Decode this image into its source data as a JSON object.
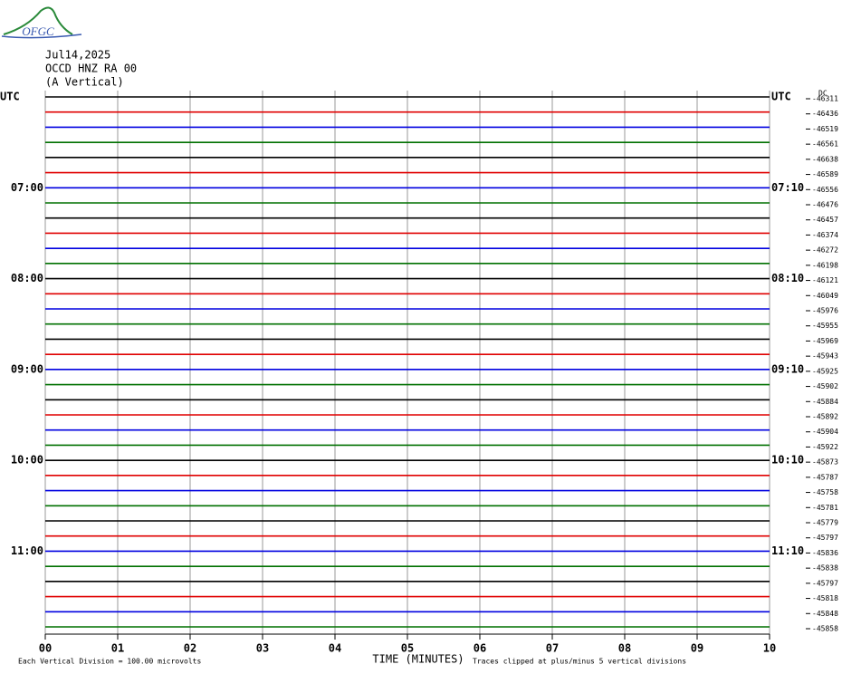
{
  "chart_data": {
    "type": "helicorder",
    "logo": "OFGC",
    "header": [
      "Jul14,2025",
      "OCCD HNZ RA 00",
      "(A Vertical)"
    ],
    "dc_label": "DC",
    "colors": [
      "#000000",
      "#e00000",
      "#0000e0",
      "#007000"
    ],
    "left_labels": [
      "UTC",
      null,
      null,
      null,
      null,
      null,
      "07:00",
      null,
      null,
      null,
      null,
      null,
      "08:00",
      null,
      null,
      null,
      null,
      null,
      "09:00",
      null,
      null,
      null,
      null,
      null,
      "10:00",
      null,
      null,
      null,
      null,
      null,
      "11:00",
      null,
      null,
      null,
      null,
      null
    ],
    "right_labels": [
      "UTC",
      null,
      null,
      null,
      null,
      null,
      "07:10",
      null,
      null,
      null,
      null,
      null,
      "08:10",
      null,
      null,
      null,
      null,
      null,
      "09:10",
      null,
      null,
      null,
      null,
      null,
      "10:10",
      null,
      null,
      null,
      null,
      null,
      "11:10",
      null,
      null,
      null,
      null,
      null
    ],
    "dc_values": [
      -46311,
      -46436,
      -46519,
      -46561,
      -46638,
      -46589,
      -46556,
      -46476,
      -46457,
      -46374,
      -46272,
      -46198,
      -46121,
      -46049,
      -45976,
      -45955,
      -45969,
      -45943,
      -45925,
      -45902,
      -45884,
      -45892,
      -45904,
      -45922,
      -45873,
      -45787,
      -45758,
      -45781,
      -45779,
      -45797,
      -45836,
      -45838,
      -45797,
      -45818,
      -45848,
      -45858
    ],
    "xlim": [
      0,
      10
    ],
    "xticks": [
      {
        "value": 0,
        "label": "00"
      },
      {
        "value": 1,
        "label": "01"
      },
      {
        "value": 2,
        "label": "02"
      },
      {
        "value": 3,
        "label": "03"
      },
      {
        "value": 4,
        "label": "04"
      },
      {
        "value": 5,
        "label": "05"
      },
      {
        "value": 6,
        "label": "06"
      },
      {
        "value": 7,
        "label": "07"
      },
      {
        "value": 8,
        "label": "08"
      },
      {
        "value": 9,
        "label": "09"
      },
      {
        "value": 10,
        "label": "10"
      }
    ],
    "xlabel": "TIME (MINUTES)",
    "note_left": "Each Vertical Division =  100.00 microvolts",
    "note_right": "Traces clipped at plus/minus 5 vertical divisions",
    "grid": true
  }
}
